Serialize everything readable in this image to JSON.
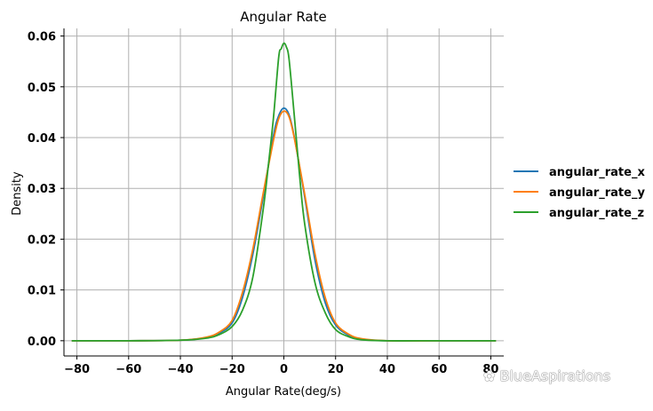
{
  "chart_data": {
    "type": "line",
    "title": "Angular Rate",
    "xlabel": "Angular Rate(deg/s)",
    "ylabel": "Density",
    "xlim": [
      -85,
      85
    ],
    "ylim": [
      -0.003,
      0.0615
    ],
    "x_ticks": [
      -80,
      -60,
      -40,
      -20,
      0,
      20,
      40,
      60,
      80
    ],
    "y_ticks": [
      0.0,
      0.01,
      0.02,
      0.03,
      0.04,
      0.05,
      0.06
    ],
    "x_tick_labels": [
      "−80",
      "−60",
      "−40",
      "−20",
      "0",
      "20",
      "40",
      "60",
      "80"
    ],
    "y_tick_labels": [
      "0.00",
      "0.01",
      "0.02",
      "0.03",
      "0.04",
      "0.05",
      "0.06"
    ],
    "grid": true,
    "legend_position": "right",
    "series": [
      {
        "name": "angular_rate_x",
        "color": "#1f77b4",
        "x": [
          -82,
          -60,
          -40,
          -30,
          -25,
          -20,
          -16,
          -12,
          -8,
          -4,
          -2,
          0,
          2,
          4,
          8,
          12,
          16,
          20,
          25,
          30,
          40,
          60,
          82
        ],
        "y": [
          0.0,
          0.0,
          0.0001,
          0.0006,
          0.0015,
          0.0035,
          0.0085,
          0.017,
          0.0283,
          0.0404,
          0.0443,
          0.0458,
          0.0445,
          0.0402,
          0.0285,
          0.016,
          0.0075,
          0.0031,
          0.0011,
          0.0003,
          0.0,
          0.0,
          0.0
        ]
      },
      {
        "name": "angular_rate_y",
        "color": "#ff7f0e",
        "x": [
          -82,
          -60,
          -40,
          -30,
          -25,
          -20,
          -16,
          -12,
          -8,
          -4,
          -2,
          0,
          2,
          4,
          8,
          12,
          16,
          20,
          25,
          30,
          40,
          60,
          82
        ],
        "y": [
          0.0,
          0.0,
          0.0001,
          0.0007,
          0.0017,
          0.004,
          0.0095,
          0.018,
          0.029,
          0.0395,
          0.0437,
          0.0452,
          0.0441,
          0.04,
          0.029,
          0.0172,
          0.0085,
          0.0035,
          0.0013,
          0.0004,
          0.0,
          0.0,
          0.0
        ]
      },
      {
        "name": "angular_rate_z",
        "color": "#2ca02c",
        "x": [
          -82,
          -60,
          -40,
          -30,
          -25,
          -20,
          -16,
          -12,
          -8,
          -6,
          -4,
          -2,
          -1,
          0,
          1,
          2,
          4,
          6,
          8,
          12,
          16,
          20,
          25,
          30,
          40,
          60,
          82
        ],
        "y": [
          0.0,
          0.0,
          0.0001,
          0.0005,
          0.0012,
          0.0028,
          0.006,
          0.0125,
          0.0258,
          0.0345,
          0.044,
          0.0558,
          0.0575,
          0.0586,
          0.0578,
          0.0555,
          0.0445,
          0.033,
          0.0232,
          0.0115,
          0.0055,
          0.0022,
          0.0008,
          0.0002,
          0.0,
          0.0,
          0.0
        ]
      }
    ]
  },
  "watermark": {
    "glyph": "✿",
    "text": "BlueAspirations"
  }
}
